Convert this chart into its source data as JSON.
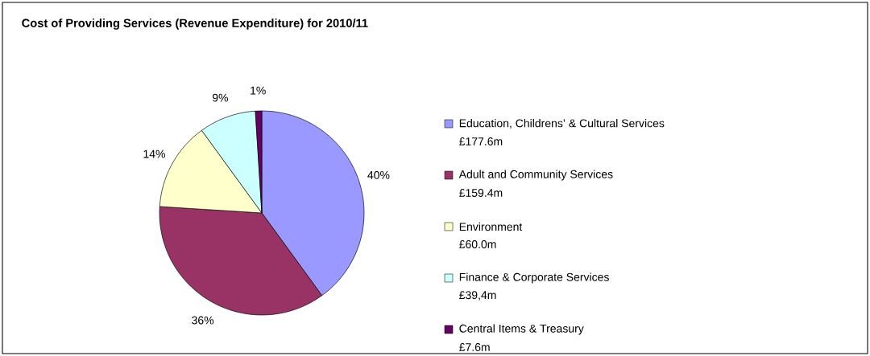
{
  "chart_data": {
    "type": "pie",
    "title": "Cost of Providing Services (Revenue Expenditure) for 2010/11",
    "categories": [
      "Education, Childrens’ & Cultural Services",
      "Adult and Community Services",
      "Environment",
      "Finance & Corporate Services",
      "Central Items & Treasury"
    ],
    "values": [
      40,
      36,
      14,
      9,
      1
    ],
    "value_labels": [
      "40%",
      "36%",
      "14%",
      "9%",
      "1%"
    ],
    "colors": [
      "#9999ff",
      "#993366",
      "#ffffcc",
      "#ccffff",
      "#660066"
    ],
    "annotations": [
      "£177.6m",
      "£159.4m",
      "£60.0m",
      "£39,4m",
      "£7.6m"
    ],
    "legend": "right"
  }
}
